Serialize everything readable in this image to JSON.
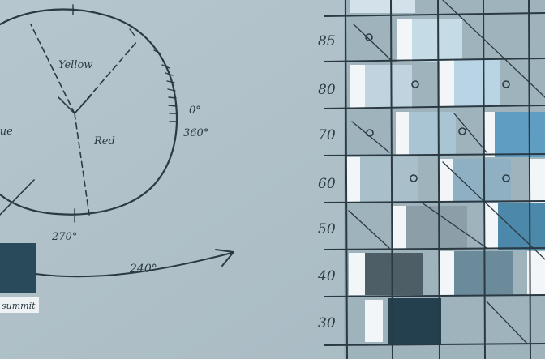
{
  "colors": {
    "paper": "#aebfc7",
    "ink": "#2b3942"
  },
  "wheel": {
    "labels": {
      "yellow": "Yellow",
      "red": "Red",
      "blue": "Blue",
      "deg0": "0°",
      "deg360": "360°",
      "deg270": "270°"
    }
  },
  "arrow": {
    "label": "240°"
  },
  "swatch": {
    "label": "summit"
  },
  "grid": {
    "row_labels": [
      "85",
      "80",
      "70",
      "60",
      "50",
      "40",
      "30"
    ]
  }
}
